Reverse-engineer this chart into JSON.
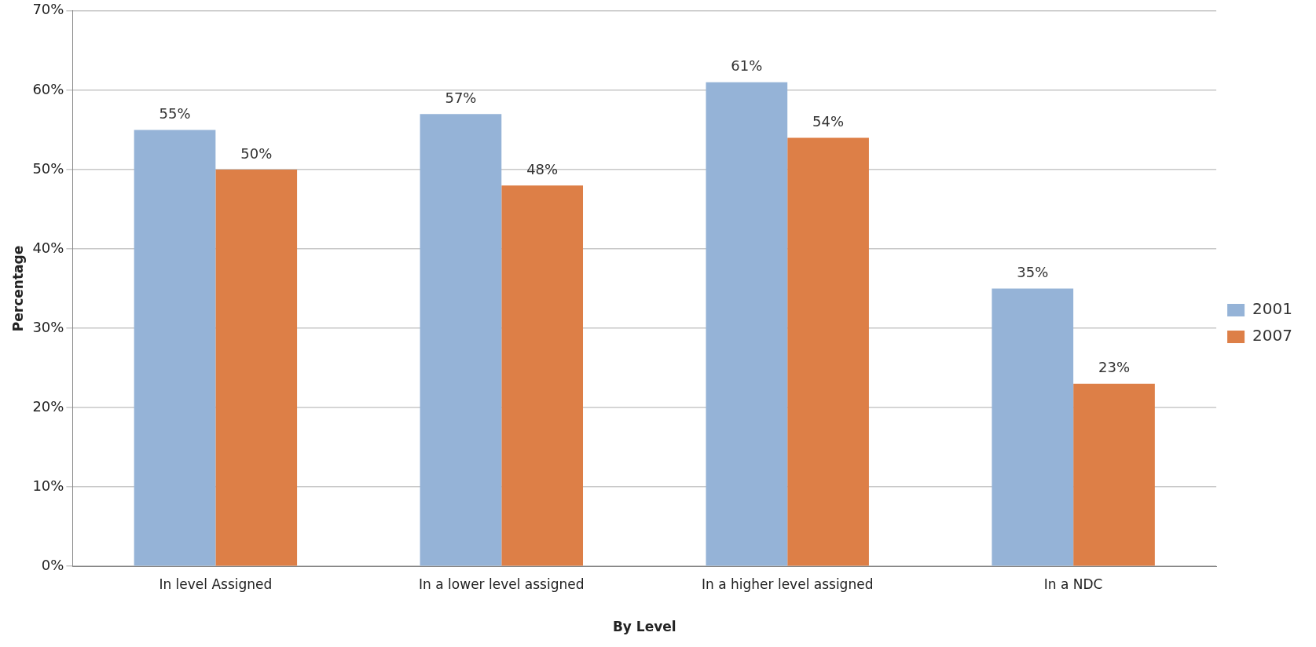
{
  "chart_data": {
    "type": "bar",
    "xlabel": "By Level",
    "ylabel": "Percentage",
    "categories": [
      "In level Assigned",
      "In a lower level assigned",
      "In a higher level assigned",
      "In a NDC"
    ],
    "series": [
      {
        "name": "2001",
        "color": "#95b3d7",
        "values": [
          55,
          57,
          61,
          35
        ],
        "value_labels": [
          "55%",
          "57%",
          "61%",
          "35%"
        ]
      },
      {
        "name": "2007",
        "color": "#dd7f47",
        "values": [
          50,
          48,
          54,
          23
        ],
        "value_labels": [
          "50%",
          "48%",
          "54%",
          "23%"
        ]
      }
    ],
    "ylim": [
      0,
      70
    ],
    "yticks": [
      {
        "value": 0,
        "label": "0%"
      },
      {
        "value": 10,
        "label": "10%"
      },
      {
        "value": 20,
        "label": "20%"
      },
      {
        "value": 30,
        "label": "30%"
      },
      {
        "value": 40,
        "label": "40%"
      },
      {
        "value": 50,
        "label": "50%"
      },
      {
        "value": 60,
        "label": "60%"
      },
      {
        "value": 70,
        "label": "70%"
      }
    ],
    "grid": "y",
    "legend": "right"
  }
}
